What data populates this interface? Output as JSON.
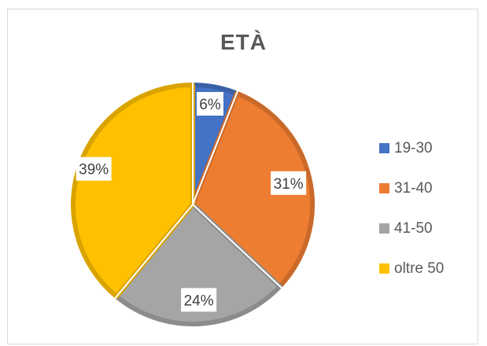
{
  "chart_data": {
    "type": "pie",
    "title": "ETÀ",
    "categories": [
      "19-30",
      "31-40",
      "41-50",
      "oltre 50"
    ],
    "values": [
      6,
      31,
      24,
      39
    ],
    "value_labels": [
      "6%",
      "31%",
      "24%",
      "39%"
    ],
    "colors": [
      "#4472C4",
      "#ED7D31",
      "#A5A5A5",
      "#FFC000"
    ],
    "legend_position": "right"
  }
}
